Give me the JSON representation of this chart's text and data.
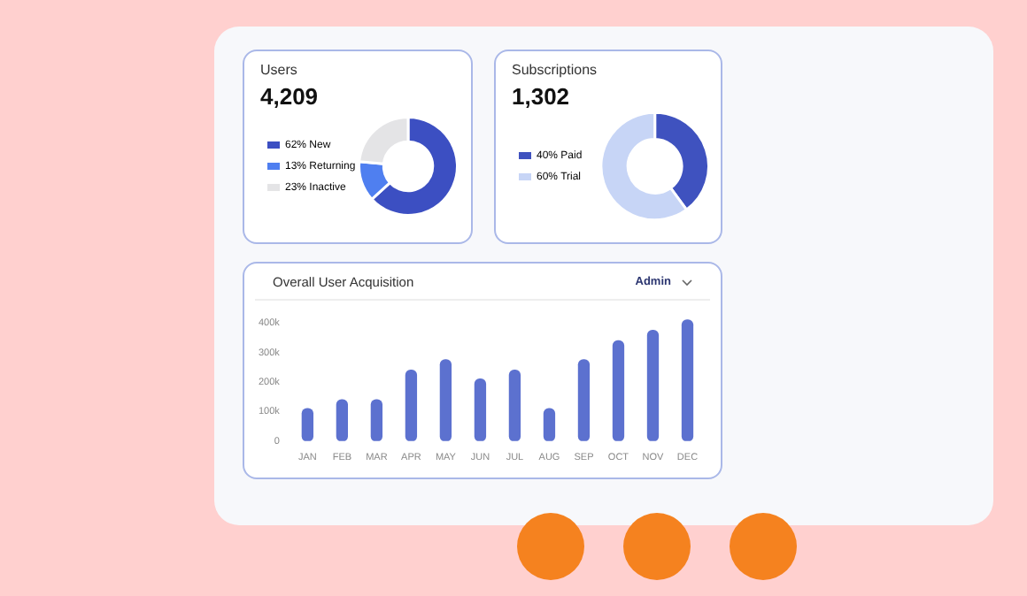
{
  "chart_data": [
    {
      "type": "donut",
      "title": "Users",
      "subtitle": "4,209",
      "categories": [
        "New",
        "Returning",
        "Inactive"
      ],
      "values": [
        62,
        13,
        23
      ],
      "value_labels": [
        "62%",
        "13%",
        "23%"
      ],
      "colors": [
        "#3c4fc2",
        "#4f7ff0",
        "#e4e4e6"
      ],
      "legend": "left"
    },
    {
      "type": "donut",
      "title": "Subscriptions",
      "subtitle": "1,302",
      "categories": [
        "Paid",
        "Trial"
      ],
      "values": [
        40,
        60
      ],
      "value_labels": [
        "40%",
        "60%"
      ],
      "colors": [
        "#3f52bf",
        "#c7d5f6"
      ],
      "legend": "left"
    },
    {
      "type": "bar",
      "title": "Overall User Acquisition",
      "annotations": [
        "Admin"
      ],
      "categories": [
        "JAN",
        "FEB",
        "MAR",
        "APR",
        "MAY",
        "JUN",
        "JUL",
        "AUG",
        "SEP",
        "OCT",
        "NOV",
        "DEC"
      ],
      "series": [
        {
          "color": "#5c71cf",
          "values": [
            110000,
            140000,
            140000,
            240000,
            275000,
            210000,
            240000,
            110000,
            275000,
            340000,
            375000,
            410000
          ]
        }
      ],
      "ylim": [
        0,
        420000
      ],
      "yticks": [
        {
          "value": 0,
          "label": "0"
        },
        {
          "value": 100000,
          "label": "100k"
        },
        {
          "value": 200000,
          "label": "200k"
        },
        {
          "value": 300000,
          "label": "300k"
        },
        {
          "value": 400000,
          "label": "400k"
        }
      ],
      "grid": false,
      "legend": false
    }
  ]
}
